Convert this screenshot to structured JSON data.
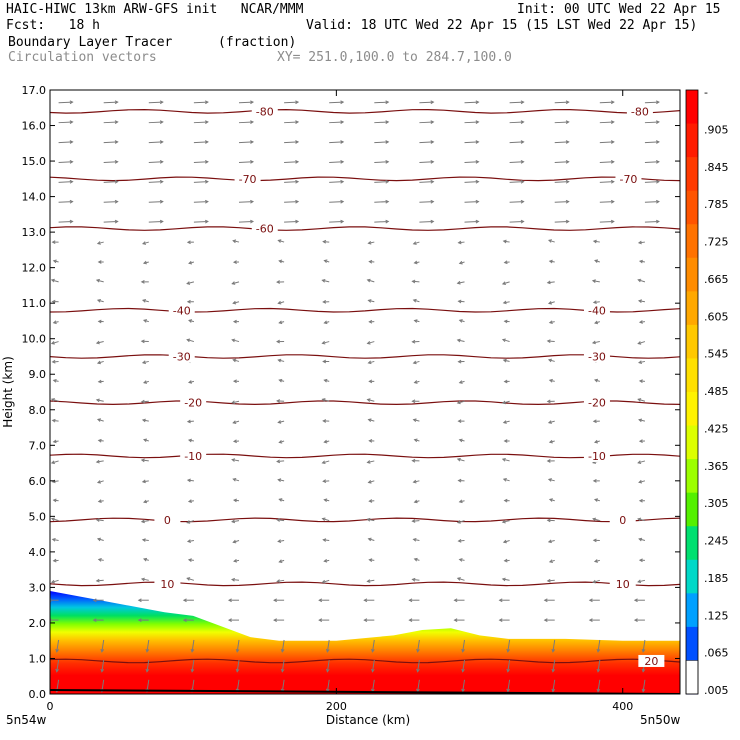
{
  "header": {
    "model": "HAIC-HIWC 13km ARW-GFS init   NCAR/MMM",
    "init": "Init: 00 UTC Wed 22 Apr 15",
    "fcst": "Fcst:   18 h",
    "valid": "Valid: 18 UTC Wed 22 Apr 15 (15 LST Wed 22 Apr 15)",
    "field": "Boundary Layer Tracer",
    "units": "(fraction)",
    "vectors": "Circulation vectors",
    "xy": "XY= 251.0,100.0 to 284.7,100.0"
  },
  "chart_data": {
    "type": "heatmap",
    "title": "Boundary Layer Tracer",
    "units": "(fraction)",
    "xlabel": "Distance (km)",
    "ylabel": "Height (km)",
    "xlim": [
      0,
      440
    ],
    "ylim": [
      0,
      17
    ],
    "x_ticks": [
      "0",
      "200",
      "400"
    ],
    "x_end_labels": [
      "5n54w",
      "5n50w"
    ],
    "y_ticks": [
      "0.0",
      "1.0",
      "2.0",
      "3.0",
      "4.0",
      "5.0",
      "6.0",
      "7.0",
      "8.0",
      "9.0",
      "10.0",
      "11.0",
      "12.0",
      "13.0",
      "14.0",
      "15.0",
      "16.0",
      "17.0"
    ],
    "colorbar": {
      "labels": [
        "-",
        ".905",
        ".845",
        ".785",
        ".725",
        ".665",
        ".605",
        ".545",
        ".485",
        ".425",
        ".365",
        ".305",
        ".245",
        ".185",
        ".125",
        ".065",
        ".005"
      ],
      "colors": [
        "#ffffff",
        "#ff0000",
        "#ff1c00",
        "#ff3a00",
        "#ff5400",
        "#ff7200",
        "#ff8c00",
        "#ffa800",
        "#ffc800",
        "#ffe000",
        "#fff200",
        "#dcff00",
        "#9cff00",
        "#54f000",
        "#00e070",
        "#00d8c8",
        "#00a0ff",
        "#0050ff",
        "#0000ff"
      ]
    },
    "tracer_top_km": {
      "x": [
        0,
        40,
        80,
        100,
        120,
        140,
        160,
        200,
        240,
        260,
        280,
        300,
        320,
        360,
        400,
        440
      ],
      "y": [
        2.9,
        2.6,
        2.3,
        2.2,
        1.9,
        1.6,
        1.5,
        1.5,
        1.65,
        1.8,
        1.85,
        1.65,
        1.55,
        1.55,
        1.5,
        1.5
      ]
    },
    "temperature_contours": {
      "levels": [
        20,
        10,
        0,
        -10,
        -20,
        -30,
        -40,
        -60,
        -70,
        -80
      ],
      "labels": [
        {
          "level": "20",
          "x": [
            420
          ],
          "y": [
            0.93
          ]
        },
        {
          "level": "10",
          "x": [
            82,
            400
          ],
          "y": [
            3.1,
            3.1
          ]
        },
        {
          "level": "0",
          "x": [
            82,
            400
          ],
          "y": [
            4.9,
            4.9
          ]
        },
        {
          "level": "-10",
          "x": [
            100,
            382
          ],
          "y": [
            6.7,
            6.7
          ]
        },
        {
          "level": "-20",
          "x": [
            100,
            382
          ],
          "y": [
            8.2,
            8.2
          ]
        },
        {
          "level": "-30",
          "x": [
            92,
            382
          ],
          "y": [
            9.5,
            9.5
          ]
        },
        {
          "level": "-40",
          "x": [
            92,
            382
          ],
          "y": [
            10.8,
            10.8
          ]
        },
        {
          "level": "-60",
          "x": [
            150
          ],
          "y": [
            13.1
          ]
        },
        {
          "level": "-70",
          "x": [
            138,
            404
          ],
          "y": [
            14.5,
            14.5
          ]
        },
        {
          "level": "-80",
          "x": [
            150,
            412
          ],
          "y": [
            16.4,
            16.4
          ]
        }
      ]
    },
    "grid": false,
    "legend": "colorbar-right"
  }
}
